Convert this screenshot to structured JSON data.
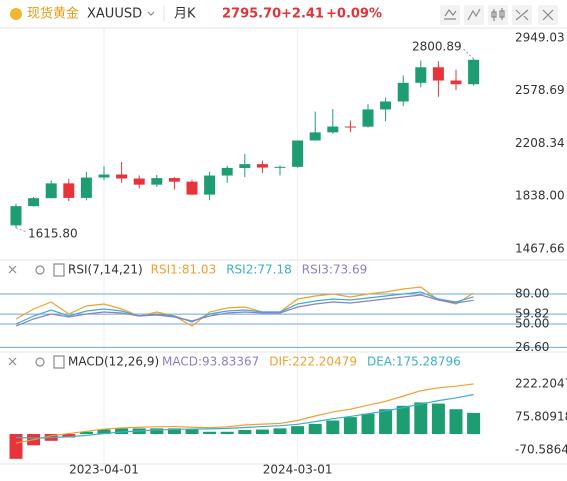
{
  "header": {
    "title": "现货黄金",
    "symbol": "XAUUSD",
    "period": "月K",
    "price": "2795.70",
    "change": "+2.41",
    "change_pct": "+0.09%"
  },
  "chart_data": [
    {
      "type": "candlestick",
      "categories": [
        null,
        null,
        null,
        null,
        null,
        "2023-04-01",
        null,
        null,
        null,
        null,
        null,
        null,
        null,
        null,
        null,
        null,
        "2024-03-01",
        null,
        null,
        null,
        null,
        null,
        null,
        null,
        null,
        null,
        null
      ],
      "open": [
        1633,
        1768,
        1824,
        1928,
        1826,
        1969,
        1990,
        1962,
        1919,
        1965,
        1940,
        1849,
        1983,
        2036,
        2063,
        2039,
        2044,
        2229,
        2286,
        2327,
        2326,
        2447,
        2503,
        2634,
        2743,
        2650,
        2624
      ],
      "high": [
        1786,
        1833,
        1949,
        1959,
        2009,
        2048,
        2079,
        1984,
        1987,
        1971,
        1953,
        2009,
        2052,
        2135,
        2088,
        2054,
        2223,
        2432,
        2450,
        2369,
        2483,
        2531,
        2685,
        2790,
        2786,
        2726,
        2800.89
      ],
      "low": [
        1615.8,
        1765,
        1823,
        1804,
        1809,
        1950,
        1932,
        1893,
        1903,
        1885,
        1847,
        1810,
        1931,
        1973,
        2001,
        1984,
        2038,
        2229,
        2277,
        2287,
        2319,
        2364,
        2471,
        2603,
        2536,
        2583,
        2614
      ],
      "close": [
        1768,
        1824,
        1928,
        1826,
        1969,
        1990,
        1962,
        1919,
        1965,
        1940,
        1849,
        1983,
        2036,
        2063,
        2039,
        2044,
        2229,
        2286,
        2327,
        2326,
        2447,
        2503,
        2634,
        2743,
        2650,
        2624,
        2795.7
      ],
      "up_color": "#1f9d72",
      "down_color": "#e8333b",
      "annotations": [
        {
          "value": 2800.89,
          "label": "2800.89",
          "index": 26
        },
        {
          "value": 1615.8,
          "label": "1615.80",
          "index": 0
        }
      ],
      "ylim": [
        1404,
        3075
      ],
      "yticks": [
        2949.03,
        2578.69,
        2208.34,
        {
          "value": 1838,
          "label": "1838.00"
        },
        1467.66
      ],
      "grid": false
    },
    {
      "type": "line",
      "title": "RSI(7,14,21)",
      "series": [
        {
          "name": "RSI1:81.03",
          "color": "#f0a030",
          "values": [
            55,
            65,
            72,
            60,
            68,
            70,
            65,
            58,
            62,
            58,
            48,
            62,
            66,
            67,
            62,
            62,
            75,
            78,
            80,
            77,
            80,
            82,
            85,
            87,
            74,
            70,
            81.03
          ]
        },
        {
          "name": "RSI2:77.18",
          "color": "#3cb0c8",
          "values": [
            50,
            58,
            64,
            58,
            63,
            65,
            63,
            58,
            60,
            58,
            52,
            60,
            63,
            64,
            62,
            62,
            70,
            73,
            75,
            74,
            76,
            78,
            80,
            82,
            75,
            72,
            77.18
          ]
        },
        {
          "name": "RSI3:73.69",
          "color": "#8c7fc8",
          "values": [
            48,
            55,
            60,
            57,
            60,
            62,
            61,
            58,
            59,
            57,
            53,
            58,
            61,
            62,
            61,
            61,
            67,
            70,
            72,
            71,
            73,
            75,
            77,
            79,
            74,
            71,
            73.69
          ]
        }
      ],
      "ylim": [
        24,
        104
      ],
      "yticks": [
        {
          "value": 80,
          "label": "80.00"
        },
        59.82,
        {
          "value": 50,
          "label": "50.00"
        },
        {
          "value": 26.6,
          "label": "26.60"
        }
      ],
      "grid": true,
      "grid_color": "#6aa8dc"
    },
    {
      "type": "macd",
      "title": "MACD(12,26,9)",
      "histogram": {
        "name": "MACD:93.83367",
        "up_color": "#1f9d72",
        "down_color": "#e8333b",
        "values": [
          -110,
          -50,
          -30,
          -15,
          10,
          20,
          25,
          25,
          25,
          25,
          20,
          10,
          10,
          18,
          20,
          25,
          35,
          45,
          60,
          75,
          90,
          110,
          125,
          140,
          135,
          110,
          93.83367
        ]
      },
      "series": [
        {
          "name": "DIF:222.20479",
          "color": "#f0a030",
          "values": [
            -40,
            -25,
            -8,
            2,
            12,
            22,
            27,
            30,
            32,
            33,
            30,
            28,
            32,
            40,
            44,
            47,
            60,
            80,
            98,
            110,
            128,
            145,
            168,
            192,
            205,
            212,
            222.20479
          ]
        },
        {
          "name": "DEA:175.28796",
          "color": "#3cb0c8",
          "values": [
            -15,
            -18,
            -16,
            -12,
            -6,
            2,
            9,
            14,
            18,
            21,
            22,
            23,
            25,
            29,
            33,
            37,
            43,
            55,
            68,
            78,
            90,
            102,
            117,
            133,
            148,
            160,
            175.28796
          ]
        }
      ],
      "ylim": [
        -124,
        275
      ],
      "yticks": [
        222.20479,
        75.80918,
        -70.58644
      ],
      "grid": false
    }
  ]
}
